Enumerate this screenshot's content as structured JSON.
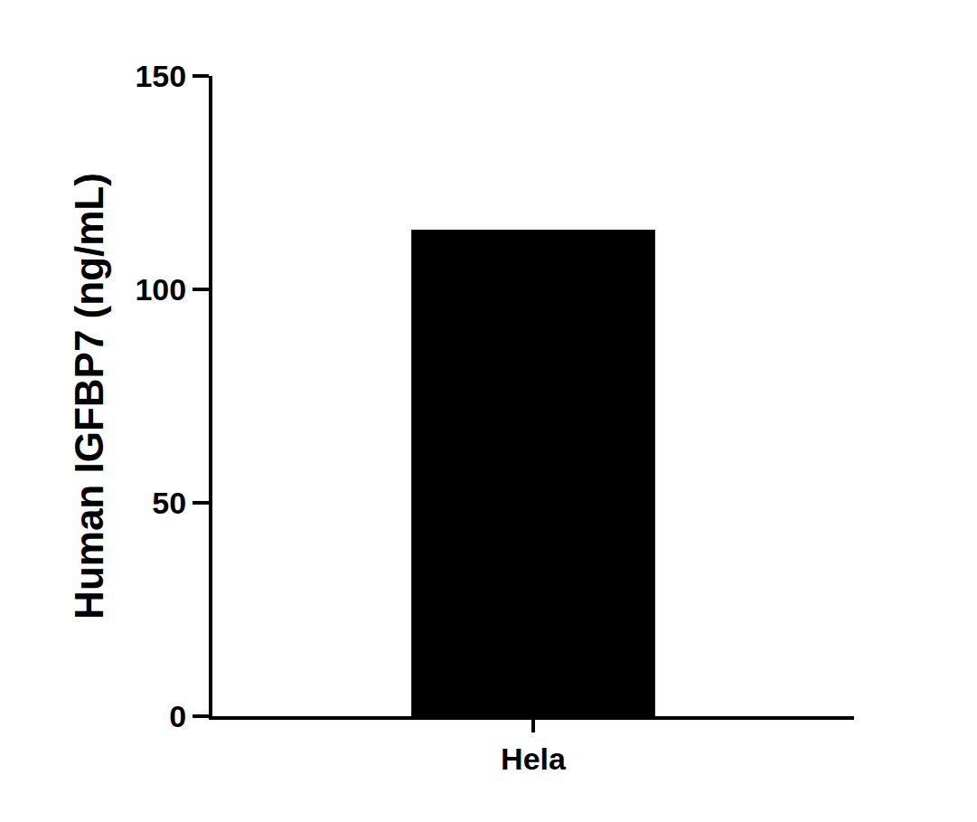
{
  "chart_data": {
    "type": "bar",
    "categories": [
      "Hela"
    ],
    "values": [
      114
    ],
    "color": "#000000",
    "y_label": "Human IGFBP7 (ng/mL)",
    "ylim": [
      0,
      150
    ],
    "yticks": [
      0,
      50,
      100,
      150
    ],
    "grid": false
  }
}
